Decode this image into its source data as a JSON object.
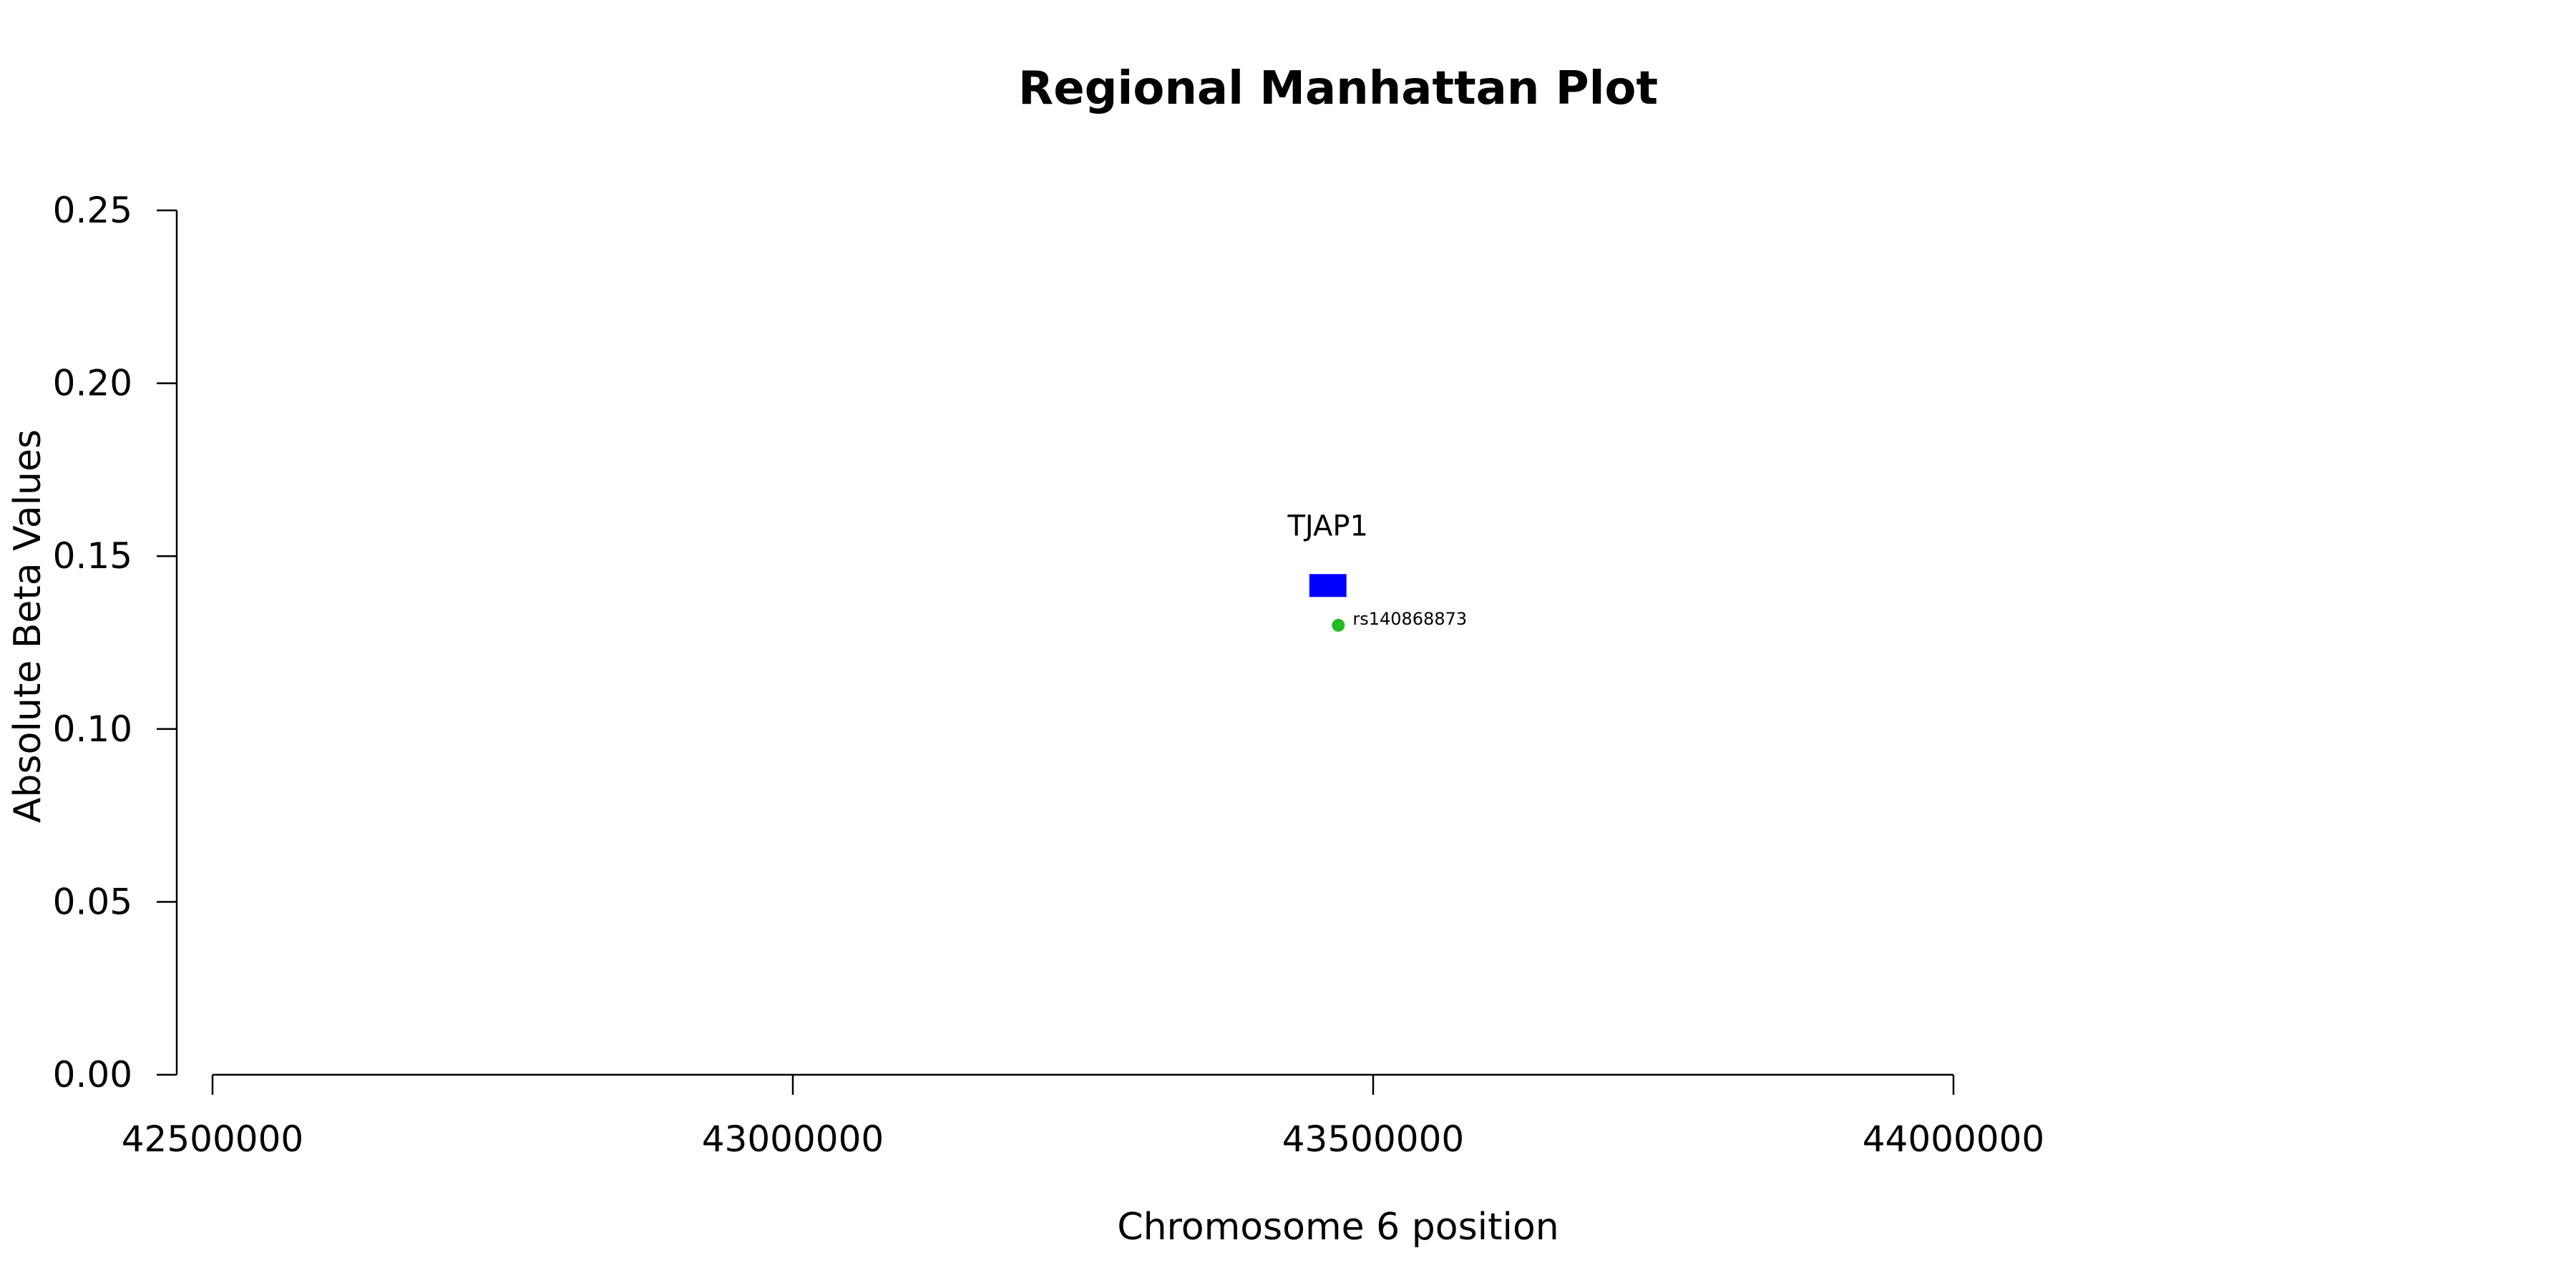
{
  "chart_data": {
    "type": "scatter",
    "title": "Regional Manhattan Plot",
    "xlabel": "Chromosome 6 position",
    "ylabel": "Absolute Beta Values",
    "xlim": [
      42500000,
      44000000
    ],
    "ylim": [
      0,
      0.25
    ],
    "x_ticks": [
      42500000,
      43000000,
      43500000,
      44000000
    ],
    "x_tick_labels": [
      "42500000",
      "43000000",
      "43500000",
      "44000000"
    ],
    "y_ticks": [
      0,
      0.05,
      0.1,
      0.15,
      0.2,
      0.25
    ],
    "y_tick_labels": [
      "0.00",
      "0.05",
      "0.10",
      "0.15",
      "0.20",
      "0.25"
    ],
    "grid": false,
    "genes": [
      {
        "label": "TJAP1",
        "start": 43445000,
        "end": 43477000,
        "y": 0.1415,
        "color": "#0000ff"
      }
    ],
    "points": [
      {
        "label": "rs140868873",
        "x": 43470000,
        "y": 0.13,
        "color": "#22bb22"
      }
    ]
  }
}
